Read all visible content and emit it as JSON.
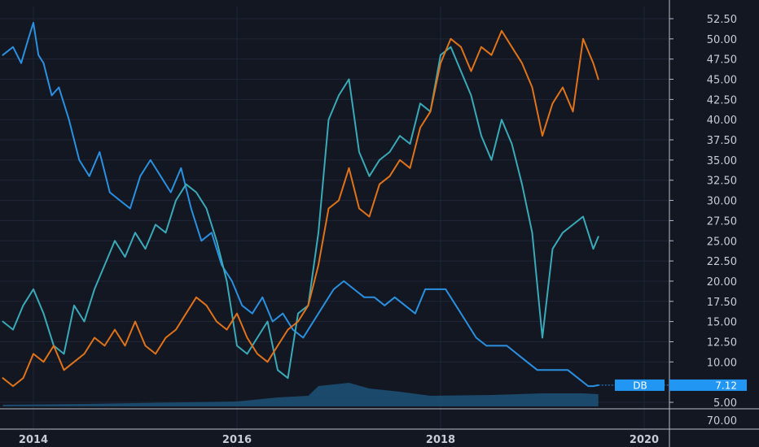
{
  "chart_data": {
    "type": "line",
    "x_ticks": [
      "2014",
      "2016",
      "2018",
      "2020"
    ],
    "y_ticks": [
      "52.50",
      "50.00",
      "47.50",
      "45.00",
      "42.50",
      "40.00",
      "37.50",
      "35.00",
      "32.50",
      "30.00",
      "27.50",
      "25.00",
      "22.50",
      "20.00",
      "17.50",
      "15.00",
      "12.50",
      "10.00",
      "5.00"
    ],
    "volume_tick": "70.00",
    "ylim": [
      3.5,
      54.5
    ],
    "xlim": [
      2013.7,
      2020.2
    ],
    "grid": true,
    "last_value": {
      "symbol": "DB",
      "value": "7.12"
    },
    "colors": {
      "background": "#131722",
      "grid": "#1f2636",
      "divider": "#b7bcc6",
      "db_line": "#2a90e0",
      "teal_line": "#3aa9b8",
      "orange_line": "#e0731a",
      "volume": "#1c4f73",
      "flag": "#2196f3"
    },
    "series": [
      {
        "color": "#2a90e0",
        "x": [
          2013.7,
          2013.8,
          2013.88,
          2013.95,
          2014.0,
          2014.05,
          2014.1,
          2014.18,
          2014.25,
          2014.35,
          2014.45,
          2014.55,
          2014.65,
          2014.75,
          2014.85,
          2014.95,
          2015.05,
          2015.15,
          2015.25,
          2015.35,
          2015.45,
          2015.55,
          2015.65,
          2015.75,
          2015.85,
          2015.95,
          2016.05,
          2016.15,
          2016.25,
          2016.35,
          2016.45,
          2016.55,
          2016.65,
          2016.75,
          2016.85,
          2016.95,
          2017.05,
          2017.15,
          2017.25,
          2017.35,
          2017.45,
          2017.55,
          2017.65,
          2017.75,
          2017.85,
          2017.95,
          2018.05,
          2018.15,
          2018.25,
          2018.35,
          2018.45,
          2018.55,
          2018.65,
          2018.75,
          2018.85,
          2018.95,
          2019.05,
          2019.15,
          2019.25,
          2019.35,
          2019.45,
          2019.5,
          2019.55
        ],
        "values": [
          48,
          49,
          47,
          50,
          52,
          48,
          47,
          43,
          44,
          40,
          35,
          33,
          36,
          31,
          30,
          29,
          33,
          35,
          33,
          31,
          34,
          29,
          25,
          26,
          22,
          20,
          17,
          16,
          18,
          15,
          16,
          14,
          13,
          15,
          17,
          19,
          20,
          19,
          18,
          18,
          17,
          18,
          17,
          16,
          19,
          19,
          19,
          17,
          15,
          13,
          12,
          12,
          12,
          11,
          10,
          9,
          9,
          9,
          9,
          8,
          7,
          7,
          7.12
        ]
      },
      {
        "color": "#3aa9b8",
        "x": [
          2013.7,
          2013.8,
          2013.9,
          2014.0,
          2014.1,
          2014.2,
          2014.3,
          2014.4,
          2014.5,
          2014.6,
          2014.7,
          2014.8,
          2014.9,
          2015.0,
          2015.1,
          2015.2,
          2015.3,
          2015.4,
          2015.5,
          2015.6,
          2015.7,
          2015.8,
          2015.9,
          2016.0,
          2016.1,
          2016.2,
          2016.3,
          2016.4,
          2016.5,
          2016.6,
          2016.7,
          2016.8,
          2016.9,
          2017.0,
          2017.1,
          2017.2,
          2017.3,
          2017.4,
          2017.5,
          2017.6,
          2017.7,
          2017.8,
          2017.9,
          2018.0,
          2018.1,
          2018.2,
          2018.3,
          2018.4,
          2018.5,
          2018.6,
          2018.7,
          2018.8,
          2018.9,
          2019.0,
          2019.1,
          2019.2,
          2019.3,
          2019.4,
          2019.5,
          2019.55
        ],
        "values": [
          15,
          14,
          17,
          19,
          16,
          12,
          11,
          17,
          15,
          19,
          22,
          25,
          23,
          26,
          24,
          27,
          26,
          30,
          32,
          31,
          29,
          25,
          20,
          12,
          11,
          13,
          15,
          9,
          8,
          16,
          17,
          26,
          40,
          43,
          45,
          36,
          33,
          35,
          36,
          38,
          37,
          42,
          41,
          48,
          49,
          46,
          43,
          38,
          35,
          40,
          37,
          32,
          26,
          13,
          24,
          26,
          27,
          28,
          24,
          25.5
        ]
      },
      {
        "color": "#e0731a",
        "x": [
          2013.7,
          2013.8,
          2013.9,
          2014.0,
          2014.1,
          2014.2,
          2014.3,
          2014.4,
          2014.5,
          2014.6,
          2014.7,
          2014.8,
          2014.9,
          2015.0,
          2015.1,
          2015.2,
          2015.3,
          2015.4,
          2015.5,
          2015.6,
          2015.7,
          2015.8,
          2015.9,
          2016.0,
          2016.1,
          2016.2,
          2016.3,
          2016.4,
          2016.5,
          2016.6,
          2016.7,
          2016.8,
          2016.9,
          2017.0,
          2017.1,
          2017.2,
          2017.3,
          2017.4,
          2017.5,
          2017.6,
          2017.7,
          2017.8,
          2017.9,
          2018.0,
          2018.1,
          2018.2,
          2018.3,
          2018.4,
          2018.5,
          2018.6,
          2018.7,
          2018.8,
          2018.9,
          2019.0,
          2019.1,
          2019.2,
          2019.3,
          2019.4,
          2019.5,
          2019.55
        ],
        "values": [
          8,
          7,
          8,
          11,
          10,
          12,
          9,
          10,
          11,
          13,
          12,
          14,
          12,
          15,
          12,
          11,
          13,
          14,
          16,
          18,
          17,
          15,
          14,
          16,
          13,
          11,
          10,
          12,
          14,
          15,
          17,
          22,
          29,
          30,
          34,
          29,
          28,
          32,
          33,
          35,
          34,
          39,
          41,
          47,
          50,
          49,
          46,
          49,
          48,
          51,
          49,
          47,
          44,
          38,
          42,
          44,
          41,
          50,
          47,
          45
        ]
      }
    ]
  }
}
